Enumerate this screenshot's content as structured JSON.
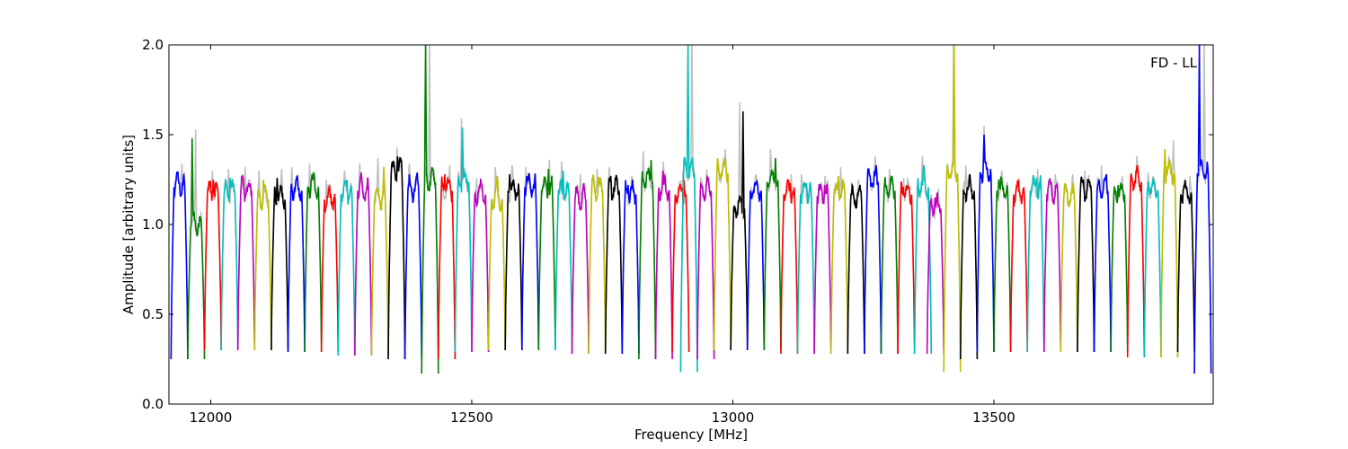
{
  "chart_data": {
    "type": "line",
    "title": "",
    "annotation": "FD - LL",
    "xlabel": "Frequency [MHz]",
    "ylabel": "Amplitude [arbitrary units]",
    "xlim": [
      11920,
      13920
    ],
    "ylim": [
      0.0,
      2.0
    ],
    "xticks": [
      12000,
      12500,
      13000,
      13500
    ],
    "yticks": [
      0.0,
      0.5,
      1.0,
      1.5,
      2.0
    ],
    "xtick_labels": [
      "12000",
      "12500",
      "13000",
      "13500"
    ],
    "ytick_labels": [
      "0.0",
      "0.5",
      "1.0",
      "1.5",
      "2.0"
    ],
    "grid": false,
    "background_series": {
      "color": "#bfbfbf",
      "peak_offset": 0.05
    },
    "channel_width_mhz": 32,
    "colors": [
      "#0000ff",
      "#008000",
      "#ff0000",
      "#00bfbf",
      "#bf00bf",
      "#bfbf00",
      "#000000"
    ],
    "series": [
      {
        "start": 11924,
        "color": "#0000ff",
        "level": 1.22,
        "peak": 1.29,
        "min": 0.25
      },
      {
        "start": 11956,
        "color": "#008000",
        "level": 1.0,
        "peak": 1.48,
        "min": 0.25
      },
      {
        "start": 11988,
        "color": "#ff0000",
        "level": 1.18,
        "peak": 1.25,
        "min": 0.3
      },
      {
        "start": 12020,
        "color": "#00bfbf",
        "level": 1.18,
        "peak": 1.26,
        "min": 0.3
      },
      {
        "start": 12052,
        "color": "#bf00bf",
        "level": 1.2,
        "peak": 1.27,
        "min": 0.3
      },
      {
        "start": 12084,
        "color": "#bfbf00",
        "level": 1.15,
        "peak": 1.25,
        "min": 0.3
      },
      {
        "start": 12116,
        "color": "#000000",
        "level": 1.15,
        "peak": 1.26,
        "min": 0.3
      },
      {
        "start": 12148,
        "color": "#0000ff",
        "level": 1.2,
        "peak": 1.27,
        "min": 0.29
      },
      {
        "start": 12180,
        "color": "#008000",
        "level": 1.22,
        "peak": 1.29,
        "min": 0.29
      },
      {
        "start": 12212,
        "color": "#ff0000",
        "level": 1.15,
        "peak": 1.2,
        "min": 0.29
      },
      {
        "start": 12244,
        "color": "#00bfbf",
        "level": 1.18,
        "peak": 1.25,
        "min": 0.27
      },
      {
        "start": 12276,
        "color": "#bf00bf",
        "level": 1.2,
        "peak": 1.29,
        "min": 0.27
      },
      {
        "start": 12308,
        "color": "#bfbf00",
        "level": 1.15,
        "peak": 1.32,
        "min": 0.27
      },
      {
        "start": 12340,
        "color": "#000000",
        "level": 1.3,
        "peak": 1.38,
        "min": 0.25
      },
      {
        "start": 12372,
        "color": "#0000ff",
        "level": 1.2,
        "peak": 1.29,
        "min": 0.25
      },
      {
        "start": 12404,
        "color": "#008000",
        "level": 1.25,
        "peak": 2.0,
        "min": 0.17
      },
      {
        "start": 12436,
        "color": "#ff0000",
        "level": 1.2,
        "peak": 1.28,
        "min": 0.25
      },
      {
        "start": 12468,
        "color": "#00bfbf",
        "level": 1.25,
        "peak": 1.54,
        "min": 0.29
      },
      {
        "start": 12500,
        "color": "#bf00bf",
        "level": 1.18,
        "peak": 1.21,
        "min": 0.29
      },
      {
        "start": 12532,
        "color": "#bfbf00",
        "level": 1.15,
        "peak": 1.27,
        "min": 0.3
      },
      {
        "start": 12564,
        "color": "#000000",
        "level": 1.2,
        "peak": 1.28,
        "min": 0.3
      },
      {
        "start": 12596,
        "color": "#0000ff",
        "level": 1.22,
        "peak": 1.27,
        "min": 0.3
      },
      {
        "start": 12628,
        "color": "#008000",
        "level": 1.2,
        "peak": 1.31,
        "min": 0.3
      },
      {
        "start": 12660,
        "color": "#00bfbf",
        "level": 1.18,
        "peak": 1.3,
        "min": 0.3
      },
      {
        "start": 12692,
        "color": "#bf00bf",
        "level": 1.15,
        "peak": 1.23,
        "min": 0.28
      },
      {
        "start": 12724,
        "color": "#bfbf00",
        "level": 1.2,
        "peak": 1.26,
        "min": 0.28
      },
      {
        "start": 12756,
        "color": "#000000",
        "level": 1.2,
        "peak": 1.27,
        "min": 0.28
      },
      {
        "start": 12788,
        "color": "#0000ff",
        "level": 1.18,
        "peak": 1.22,
        "min": 0.28
      },
      {
        "start": 12820,
        "color": "#008000",
        "level": 1.25,
        "peak": 1.36,
        "min": 0.25
      },
      {
        "start": 12852,
        "color": "#bf00bf",
        "level": 1.2,
        "peak": 1.3,
        "min": 0.25
      },
      {
        "start": 12884,
        "color": "#ff0000",
        "level": 1.18,
        "peak": 1.25,
        "min": 0.29
      },
      {
        "start": 12900,
        "color": "#00bfbf",
        "level": 1.3,
        "peak": 2.0,
        "min": 0.18
      },
      {
        "start": 12932,
        "color": "#bf00bf",
        "level": 1.2,
        "peak": 1.26,
        "min": 0.25
      },
      {
        "start": 12964,
        "color": "#bfbf00",
        "level": 1.3,
        "peak": 1.37,
        "min": 0.3
      },
      {
        "start": 12996,
        "color": "#000000",
        "level": 1.1,
        "peak": 1.63,
        "min": 0.3
      },
      {
        "start": 13028,
        "color": "#0000ff",
        "level": 1.2,
        "peak": 1.23,
        "min": 0.3
      },
      {
        "start": 13060,
        "color": "#008000",
        "level": 1.25,
        "peak": 1.37,
        "min": 0.3
      },
      {
        "start": 13092,
        "color": "#ff0000",
        "level": 1.18,
        "peak": 1.23,
        "min": 0.28
      },
      {
        "start": 13124,
        "color": "#00bfbf",
        "level": 1.18,
        "peak": 1.23,
        "min": 0.28
      },
      {
        "start": 13156,
        "color": "#bf00bf",
        "level": 1.17,
        "peak": 1.22,
        "min": 0.28
      },
      {
        "start": 13188,
        "color": "#bfbf00",
        "level": 1.18,
        "peak": 1.27,
        "min": 0.28
      },
      {
        "start": 13220,
        "color": "#000000",
        "level": 1.15,
        "peak": 1.2,
        "min": 0.28
      },
      {
        "start": 13252,
        "color": "#0000ff",
        "level": 1.25,
        "peak": 1.33,
        "min": 0.28
      },
      {
        "start": 13284,
        "color": "#008000",
        "level": 1.2,
        "peak": 1.26,
        "min": 0.28
      },
      {
        "start": 13316,
        "color": "#ff0000",
        "level": 1.18,
        "peak": 1.21,
        "min": 0.28
      },
      {
        "start": 13348,
        "color": "#00bfbf",
        "level": 1.22,
        "peak": 1.33,
        "min": 0.28
      },
      {
        "start": 13372,
        "color": "#bf00bf",
        "level": 1.1,
        "peak": 1.15,
        "min": 0.28
      },
      {
        "start": 13404,
        "color": "#bfbf00",
        "level": 1.3,
        "peak": 2.0,
        "min": 0.18
      },
      {
        "start": 13436,
        "color": "#000000",
        "level": 1.2,
        "peak": 1.28,
        "min": 0.25
      },
      {
        "start": 13468,
        "color": "#0000ff",
        "level": 1.3,
        "peak": 1.5,
        "min": 0.29
      },
      {
        "start": 13500,
        "color": "#008000",
        "level": 1.2,
        "peak": 1.25,
        "min": 0.29
      },
      {
        "start": 13532,
        "color": "#ff0000",
        "level": 1.18,
        "peak": 1.21,
        "min": 0.29
      },
      {
        "start": 13564,
        "color": "#00bfbf",
        "level": 1.2,
        "peak": 1.26,
        "min": 0.29
      },
      {
        "start": 13596,
        "color": "#bf00bf",
        "level": 1.18,
        "peak": 1.23,
        "min": 0.29
      },
      {
        "start": 13628,
        "color": "#bfbf00",
        "level": 1.15,
        "peak": 1.23,
        "min": 0.29
      },
      {
        "start": 13660,
        "color": "#000000",
        "level": 1.2,
        "peak": 1.25,
        "min": 0.29
      },
      {
        "start": 13692,
        "color": "#0000ff",
        "level": 1.2,
        "peak": 1.28,
        "min": 0.29
      },
      {
        "start": 13724,
        "color": "#008000",
        "level": 1.18,
        "peak": 1.22,
        "min": 0.29
      },
      {
        "start": 13756,
        "color": "#ff0000",
        "level": 1.25,
        "peak": 1.33,
        "min": 0.26
      },
      {
        "start": 13788,
        "color": "#00bfbf",
        "level": 1.2,
        "peak": 1.24,
        "min": 0.26
      },
      {
        "start": 13820,
        "color": "#bfbf00",
        "level": 1.3,
        "peak": 1.42,
        "min": 0.26
      },
      {
        "start": 13852,
        "color": "#000000",
        "level": 1.18,
        "peak": 1.22,
        "min": 0.29
      },
      {
        "start": 13884,
        "color": "#0000ff",
        "level": 1.3,
        "peak": 2.0,
        "min": 0.17
      }
    ]
  }
}
